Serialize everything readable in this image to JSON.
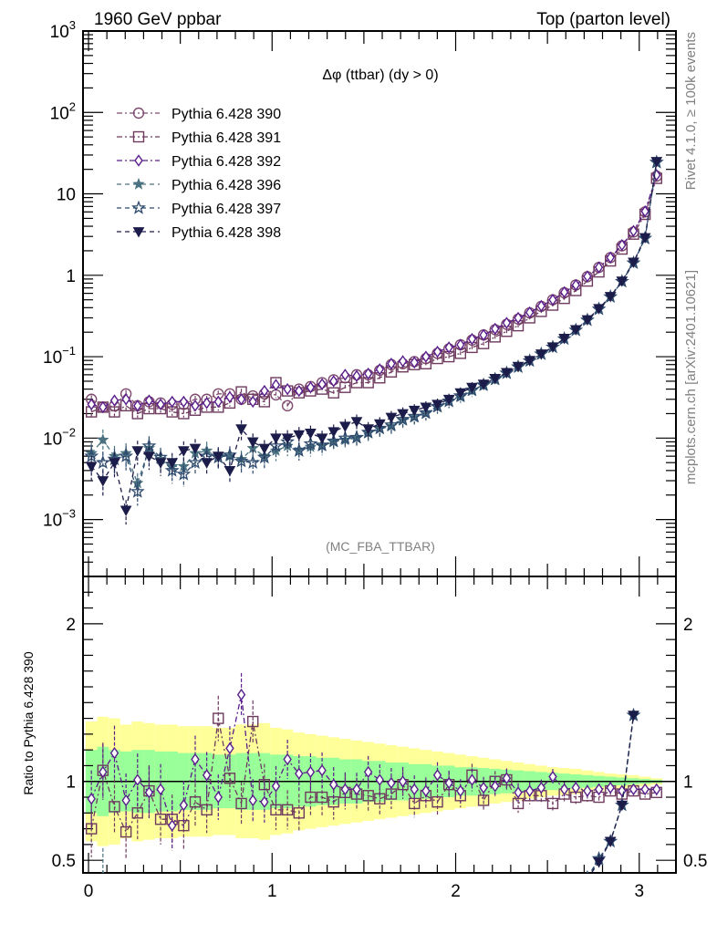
{
  "header": {
    "left_title": "1960 GeV ppbar",
    "right_title": "Top (parton level)"
  },
  "side_labels": {
    "rivet": "Rivet 4.1.0, ≥ 100k events",
    "mcplots": "mcplots.cern.ch [arXiv:2401.10621]"
  },
  "chart_data": [
    {
      "type": "line",
      "title": "Δφ (ttbar) (dy > 0)",
      "analysis_tag": "(MC_FBA_TTBAR)",
      "xlabel": "",
      "ylabel": "",
      "yscale": "log",
      "xlim": [
        -0.03,
        3.2
      ],
      "ylim": [
        0.0002,
        1000
      ],
      "x_ticks": [
        0,
        1,
        2,
        3
      ],
      "y_tick_labels": [
        "10^-3",
        "10^-2",
        "10^-1",
        "1",
        "10",
        "10^2",
        "10^3"
      ],
      "legend_position": "top-left",
      "x": [
        0.0157,
        0.0785,
        0.1414,
        0.2042,
        0.267,
        0.3299,
        0.3927,
        0.4555,
        0.5184,
        0.5812,
        0.644,
        0.7069,
        0.7697,
        0.8325,
        0.8954,
        0.9582,
        1.021,
        1.0838,
        1.1467,
        1.2095,
        1.2723,
        1.3352,
        1.398,
        1.4608,
        1.5237,
        1.5865,
        1.6493,
        1.7122,
        1.775,
        1.8378,
        1.9007,
        1.9635,
        2.0263,
        2.0892,
        2.152,
        2.2148,
        2.2777,
        2.3405,
        2.4033,
        2.4662,
        2.529,
        2.5918,
        2.6547,
        2.7175,
        2.7803,
        2.8432,
        2.906,
        2.9688,
        3.0317,
        3.0945
      ],
      "series": [
        {
          "name": "Pythia 6.428 390",
          "marker": "open-circle",
          "color": "#7e4a6e",
          "values": [
            0.03,
            0.024,
            0.025,
            0.035,
            0.025,
            0.028,
            0.027,
            0.026,
            0.026,
            0.03,
            0.03,
            0.035,
            0.035,
            0.03,
            0.033,
            0.035,
            0.034,
            0.025,
            0.04,
            0.043,
            0.048,
            0.052,
            0.055,
            0.06,
            0.06,
            0.068,
            0.08,
            0.082,
            0.087,
            0.095,
            0.11,
            0.125,
            0.14,
            0.16,
            0.185,
            0.215,
            0.25,
            0.29,
            0.345,
            0.415,
            0.5,
            0.61,
            0.76,
            0.96,
            1.25,
            1.65,
            2.3,
            3.4,
            6.0,
            16.5
          ]
        },
        {
          "name": "Pythia 6.428 391",
          "marker": "open-square",
          "color": "#6e3a5e",
          "values": [
            0.021,
            0.024,
            0.021,
            0.025,
            0.02,
            0.023,
            0.023,
            0.021,
            0.02,
            0.022,
            0.024,
            0.024,
            0.027,
            0.037,
            0.03,
            0.028,
            0.048,
            0.038,
            0.036,
            0.038,
            0.04,
            0.036,
            0.042,
            0.048,
            0.048,
            0.055,
            0.065,
            0.075,
            0.08,
            0.082,
            0.095,
            0.1,
            0.11,
            0.13,
            0.145,
            0.175,
            0.205,
            0.24,
            0.3,
            0.36,
            0.43,
            0.52,
            0.65,
            0.85,
            1.1,
            1.5,
            2.1,
            3.2,
            5.6,
            15.5
          ]
        },
        {
          "name": "Pythia 6.428 392",
          "marker": "open-diamond",
          "color": "#5a1e8c",
          "values": [
            0.026,
            0.024,
            0.029,
            0.03,
            0.025,
            0.029,
            0.026,
            0.028,
            0.028,
            0.025,
            0.027,
            0.028,
            0.032,
            0.03,
            0.028,
            0.038,
            0.045,
            0.04,
            0.038,
            0.042,
            0.046,
            0.05,
            0.06,
            0.058,
            0.062,
            0.07,
            0.082,
            0.088,
            0.085,
            0.1,
            0.115,
            0.13,
            0.14,
            0.165,
            0.185,
            0.22,
            0.26,
            0.3,
            0.35,
            0.42,
            0.5,
            0.62,
            0.76,
            0.97,
            1.25,
            1.65,
            2.35,
            3.5,
            6.1,
            17.0
          ]
        },
        {
          "name": "Pythia 6.428 396",
          "marker": "filled-star",
          "color": "#4a7280",
          "values": [
            0.0065,
            0.0095,
            0.006,
            0.0065,
            0.0028,
            0.0075,
            0.0055,
            0.0045,
            0.0045,
            0.0065,
            0.007,
            0.006,
            0.006,
            0.0055,
            0.0075,
            0.006,
            0.007,
            0.008,
            0.0072,
            0.0078,
            0.008,
            0.009,
            0.0095,
            0.01,
            0.0115,
            0.013,
            0.014,
            0.0165,
            0.018,
            0.02,
            0.024,
            0.028,
            0.032,
            0.038,
            0.044,
            0.052,
            0.062,
            0.074,
            0.088,
            0.107,
            0.13,
            0.165,
            0.21,
            0.28,
            0.38,
            0.54,
            0.83,
            1.4,
            2.8,
            24.0
          ]
        },
        {
          "name": "Pythia 6.428 397",
          "marker": "open-star",
          "color": "#2e4a6e",
          "values": [
            0.006,
            0.005,
            0.0055,
            0.006,
            0.0022,
            0.008,
            0.0058,
            0.004,
            0.0036,
            0.005,
            0.006,
            0.0058,
            0.0062,
            0.0052,
            0.005,
            0.0058,
            0.008,
            0.009,
            0.007,
            0.0085,
            0.0082,
            0.0092,
            0.01,
            0.0102,
            0.0118,
            0.0132,
            0.0145,
            0.017,
            0.0185,
            0.0205,
            0.0245,
            0.0285,
            0.033,
            0.039,
            0.045,
            0.053,
            0.063,
            0.075,
            0.089,
            0.108,
            0.131,
            0.166,
            0.212,
            0.282,
            0.385,
            0.545,
            0.84,
            1.42,
            2.85,
            24.5
          ]
        },
        {
          "name": "Pythia 6.428 398",
          "marker": "filled-triangle-down",
          "color": "#1c1c4a",
          "values": [
            0.0045,
            0.003,
            0.005,
            0.0013,
            0.007,
            0.006,
            0.005,
            0.005,
            0.007,
            0.0075,
            0.005,
            0.006,
            0.004,
            0.013,
            0.009,
            0.0075,
            0.01,
            0.01,
            0.011,
            0.0115,
            0.01,
            0.012,
            0.014,
            0.016,
            0.013,
            0.015,
            0.018,
            0.02,
            0.022,
            0.024,
            0.026,
            0.03,
            0.036,
            0.042,
            0.046,
            0.054,
            0.064,
            0.076,
            0.09,
            0.108,
            0.132,
            0.168,
            0.215,
            0.285,
            0.39,
            0.55,
            0.85,
            1.45,
            2.9,
            25.0
          ]
        }
      ]
    },
    {
      "type": "line",
      "title": "",
      "xlabel": "",
      "ylabel": "Ratio to Pythia 6.428 390",
      "xlim": [
        -0.03,
        3.2
      ],
      "ylim": [
        0.42,
        2.3
      ],
      "x_ticks": [
        0,
        1,
        2,
        3
      ],
      "y_ticks": [
        0.5,
        1,
        2
      ],
      "reference_line": 1,
      "bands": {
        "inner_color": "#99ff99",
        "outer_color": "#ffff99",
        "inner_halfwidth": [
          0.2,
          0.22,
          0.2,
          0.19,
          0.2,
          0.2,
          0.19,
          0.19,
          0.18,
          0.18,
          0.18,
          0.17,
          0.17,
          0.18,
          0.18,
          0.18,
          0.17,
          0.17,
          0.16,
          0.16,
          0.15,
          0.15,
          0.14,
          0.14,
          0.13,
          0.13,
          0.12,
          0.12,
          0.11,
          0.11,
          0.1,
          0.1,
          0.09,
          0.09,
          0.085,
          0.08,
          0.075,
          0.07,
          0.065,
          0.06,
          0.055,
          0.05,
          0.045,
          0.04,
          0.035,
          0.03,
          0.025,
          0.02,
          0.015,
          0.01
        ],
        "outer_halfwidth": [
          0.38,
          0.41,
          0.4,
          0.36,
          0.38,
          0.37,
          0.36,
          0.36,
          0.35,
          0.35,
          0.35,
          0.34,
          0.34,
          0.36,
          0.36,
          0.37,
          0.34,
          0.33,
          0.31,
          0.3,
          0.29,
          0.28,
          0.27,
          0.26,
          0.25,
          0.24,
          0.23,
          0.22,
          0.21,
          0.2,
          0.19,
          0.18,
          0.17,
          0.16,
          0.15,
          0.14,
          0.13,
          0.12,
          0.11,
          0.1,
          0.09,
          0.085,
          0.08,
          0.07,
          0.06,
          0.05,
          0.045,
          0.04,
          0.03,
          0.02
        ]
      },
      "series": [
        {
          "name": "Pythia 6.428 391",
          "marker": "open-square",
          "color": "#6e3a5e",
          "values": [
            0.7,
            1.07,
            0.84,
            0.68,
            0.8,
            0.94,
            0.76,
            0.76,
            0.72,
            0.87,
            0.82,
            1.4,
            1.02,
            0.86,
            1.38,
            0.98,
            0.82,
            0.82,
            0.8,
            0.9,
            0.9,
            0.87,
            0.93,
            0.92,
            0.91,
            0.89,
            0.92,
            0.98,
            0.86,
            0.91,
            0.87,
            0.98,
            0.91,
            1.04,
            0.88,
            1.0,
            1.01,
            0.86,
            0.91,
            0.91,
            0.86,
            0.92,
            0.9,
            0.91,
            0.9,
            0.94,
            0.92,
            0.94,
            0.92,
            0.93
          ]
        },
        {
          "name": "Pythia 6.428 392",
          "marker": "open-diamond",
          "color": "#5a1e8c",
          "values": [
            0.89,
            1.06,
            1.18,
            0.88,
            1.01,
            0.93,
            0.95,
            0.72,
            0.85,
            1.14,
            1.04,
            0.9,
            1.21,
            1.55,
            0.88,
            0.87,
            0.97,
            1.14,
            1.05,
            1.06,
            1.07,
            0.98,
            0.95,
            0.95,
            1.06,
            1.01,
            0.99,
            1.0,
            0.95,
            0.94,
            1.04,
            0.99,
            0.94,
            1.01,
            0.96,
            0.97,
            1.02,
            0.93,
            0.94,
            0.96,
            1.03,
            0.95,
            0.96,
            0.94,
            0.95,
            0.96,
            0.94,
            0.95,
            0.95,
            0.95
          ]
        },
        {
          "name": "Pythia 6.428 396",
          "marker": "filled-star",
          "color": "#4a7280",
          "values": [
            null,
            0.4,
            null,
            null,
            null,
            null,
            null,
            null,
            null,
            null,
            null,
            null,
            null,
            null,
            null,
            null,
            null,
            null,
            null,
            null,
            null,
            null,
            null,
            null,
            null,
            null,
            null,
            null,
            null,
            null,
            null,
            null,
            null,
            null,
            null,
            null,
            null,
            null,
            null,
            null,
            null,
            null,
            null,
            0.39,
            0.5,
            0.62,
            0.85,
            1.42,
            null,
            null
          ]
        },
        {
          "name": "Pythia 6.428 397",
          "marker": "open-star",
          "color": "#2e4a6e",
          "values": [
            null,
            null,
            null,
            null,
            null,
            null,
            null,
            null,
            null,
            null,
            null,
            null,
            null,
            null,
            null,
            null,
            null,
            null,
            null,
            null,
            null,
            null,
            null,
            null,
            null,
            null,
            null,
            null,
            null,
            null,
            null,
            null,
            null,
            null,
            null,
            null,
            null,
            null,
            null,
            null,
            null,
            null,
            null,
            0.39,
            0.51,
            0.62,
            0.85,
            1.42,
            null,
            null
          ]
        },
        {
          "name": "Pythia 6.428 398",
          "marker": "filled-triangle-down",
          "color": "#1c1c4a",
          "values": [
            null,
            null,
            null,
            null,
            null,
            null,
            null,
            null,
            null,
            null,
            null,
            null,
            null,
            null,
            null,
            null,
            null,
            null,
            null,
            null,
            null,
            null,
            null,
            null,
            null,
            null,
            null,
            null,
            null,
            null,
            null,
            null,
            null,
            null,
            null,
            null,
            null,
            null,
            null,
            null,
            null,
            null,
            null,
            0.38,
            0.49,
            0.62,
            0.85,
            1.42,
            null,
            null
          ]
        }
      ]
    }
  ]
}
